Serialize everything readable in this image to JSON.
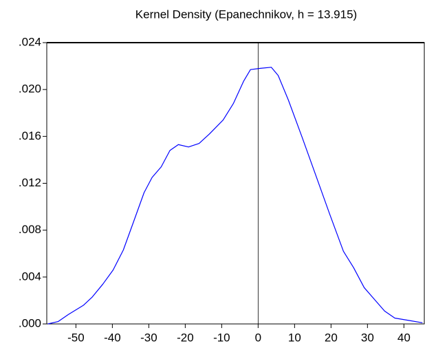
{
  "chart_data": {
    "type": "line",
    "title": "Kernel Density (Epanechnikov, h =  13.915)",
    "x": [
      -57.7,
      -54.9,
      -52.1,
      -47.9,
      -45.5,
      -42.6,
      -39.8,
      -37.0,
      -34.2,
      -31.3,
      -29.1,
      -26.6,
      -24.2,
      -21.9,
      -19.1,
      -16.2,
      -13.4,
      -9.6,
      -6.8,
      -4.0,
      -2.1,
      0.4,
      3.6,
      5.5,
      8.3,
      12.1,
      15.8,
      19.6,
      23.4,
      26.2,
      29.1,
      31.9,
      34.7,
      37.5,
      41.3,
      45.1
    ],
    "series": [
      {
        "color": "#0000ff",
        "values": [
          0.0,
          0.0002,
          0.0008,
          0.0016,
          0.0023,
          0.0034,
          0.0046,
          0.0063,
          0.0087,
          0.0112,
          0.0125,
          0.0134,
          0.0148,
          0.0153,
          0.0151,
          0.0154,
          0.0162,
          0.0174,
          0.0188,
          0.0207,
          0.0217,
          0.0218,
          0.0219,
          0.0212,
          0.0191,
          0.0159,
          0.0127,
          0.0094,
          0.0062,
          0.0048,
          0.0031,
          0.0021,
          0.0011,
          0.0005,
          0.0003,
          0.0001
        ]
      }
    ],
    "xlim": [
      -58,
      45.6
    ],
    "ylim": [
      0,
      0.024
    ],
    "xticks": [
      -50,
      -40,
      -30,
      -20,
      -10,
      0,
      10,
      20,
      30,
      40
    ],
    "yticks": [
      {
        "value": 0,
        "label": ".000"
      },
      {
        "value": 0.004,
        "label": ".004"
      },
      {
        "value": 0.008,
        "label": ".008"
      },
      {
        "value": 0.012,
        "label": ".012"
      },
      {
        "value": 0.016,
        "label": ".016"
      },
      {
        "value": 0.02,
        "label": ".020"
      },
      {
        "value": 0.024,
        "label": ".024"
      }
    ],
    "vline": 0,
    "grid": false
  }
}
